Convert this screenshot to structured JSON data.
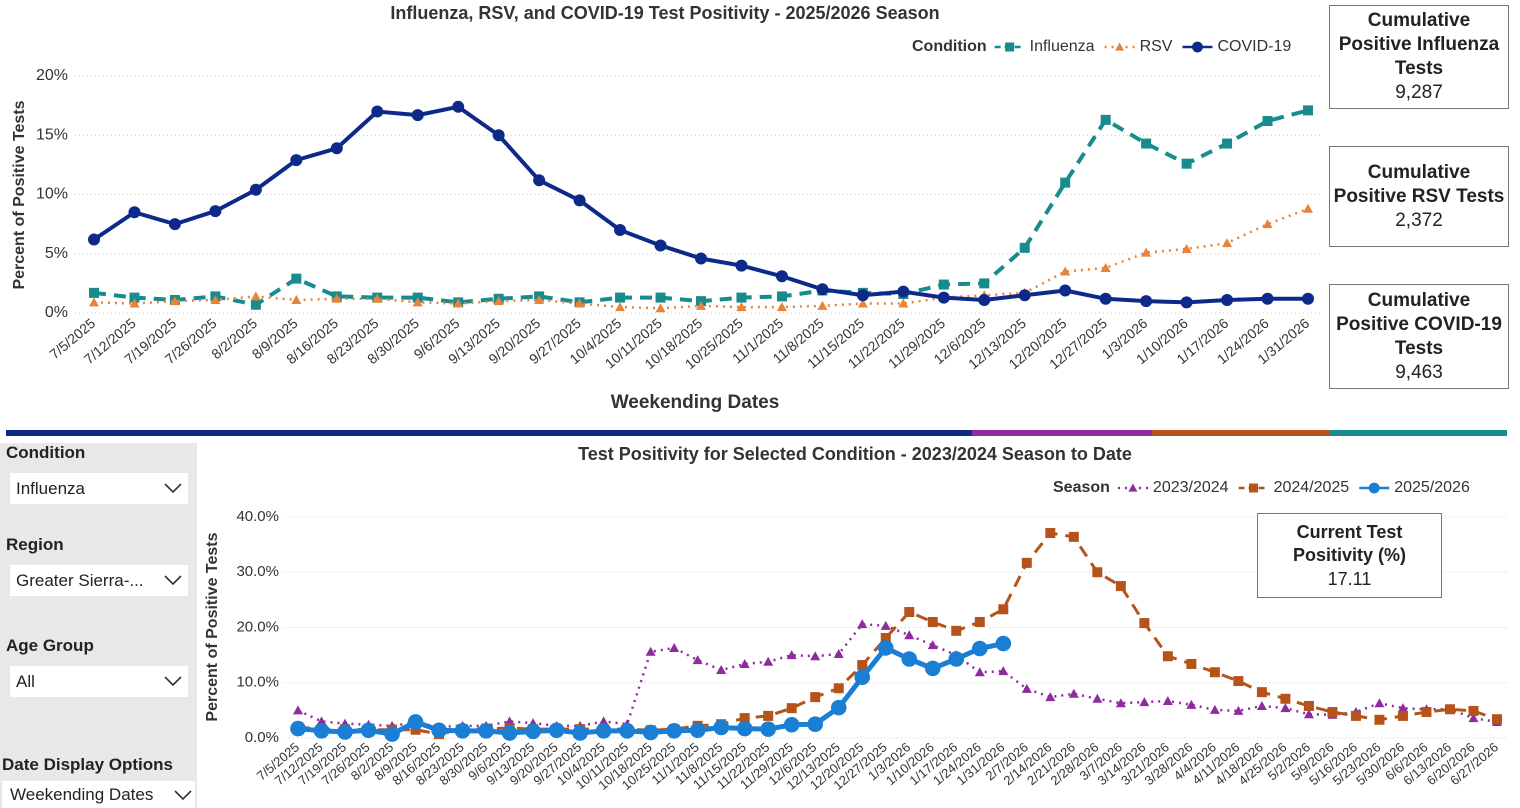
{
  "chart_data": [
    {
      "type": "line",
      "title": "Influenza, RSV, and COVID-19 Test Positivity - 2025/2026 Season",
      "x_label": "Weekending Dates",
      "y_label": "Percent of Positive Tests",
      "legend_title": "Condition",
      "grid": true,
      "categories": [
        "7/5/2025",
        "7/12/2025",
        "7/19/2025",
        "7/26/2025",
        "8/2/2025",
        "8/9/2025",
        "8/16/2025",
        "8/23/2025",
        "8/30/2025",
        "9/6/2025",
        "9/13/2025",
        "9/20/2025",
        "9/27/2025",
        "10/4/2025",
        "10/11/2025",
        "10/18/2025",
        "10/25/2025",
        "11/1/2025",
        "11/8/2025",
        "11/15/2025",
        "11/22/2025",
        "11/29/2025",
        "12/6/2025",
        "12/13/2025",
        "12/20/2025",
        "12/27/2025",
        "1/3/2026",
        "1/10/2026",
        "1/17/2026",
        "1/24/2026",
        "1/31/2026"
      ],
      "ylim": [
        0,
        20
      ],
      "yticks": [
        {
          "value": 0,
          "label": "0%"
        },
        {
          "value": 5,
          "label": "5%"
        },
        {
          "value": 10,
          "label": "10%"
        },
        {
          "value": 15,
          "label": "15%"
        },
        {
          "value": 20,
          "label": "20%"
        }
      ],
      "series": [
        {
          "name": "Influenza",
          "color": "#178b8d",
          "dash": "dash",
          "marker": "square",
          "values": [
            1.7,
            1.3,
            1.1,
            1.4,
            0.7,
            2.9,
            1.4,
            1.3,
            1.3,
            0.9,
            1.2,
            1.4,
            0.9,
            1.3,
            1.3,
            1.0,
            1.3,
            1.4,
            1.9,
            1.7,
            1.6,
            2.4,
            2.5,
            5.5,
            11.0,
            16.3,
            14.3,
            12.6,
            14.3,
            16.2,
            17.1
          ]
        },
        {
          "name": "RSV",
          "color": "#e8833a",
          "dash": "dot",
          "marker": "triangle",
          "values": [
            0.9,
            0.8,
            1.0,
            1.1,
            1.4,
            1.1,
            1.2,
            1.2,
            0.9,
            0.8,
            1.0,
            1.1,
            0.8,
            0.5,
            0.4,
            0.6,
            0.5,
            0.5,
            0.6,
            0.8,
            0.8,
            1.3,
            1.5,
            1.7,
            3.5,
            3.8,
            5.1,
            5.4,
            5.9,
            7.5,
            8.8
          ]
        },
        {
          "name": "COVID-19",
          "color": "#0d2a8a",
          "dash": "solid",
          "marker": "circle",
          "values": [
            6.2,
            8.5,
            7.5,
            8.6,
            10.4,
            12.9,
            13.9,
            17.0,
            16.7,
            17.4,
            15.0,
            11.2,
            9.5,
            7.0,
            5.7,
            4.6,
            4.0,
            3.1,
            2.0,
            1.5,
            1.8,
            1.3,
            1.1,
            1.5,
            1.9,
            1.2,
            1.0,
            0.9,
            1.1,
            1.2,
            1.2
          ]
        }
      ]
    },
    {
      "type": "line",
      "title": "Test Positivity for Selected Condition - 2023/2024 Season to Date",
      "y_label": "Percent of Positive Tests",
      "legend_title": "Season",
      "grid": true,
      "categories": [
        "7/5/2025",
        "7/12/2025",
        "7/19/2025",
        "7/26/2025",
        "8/2/2025",
        "8/9/2025",
        "8/16/2025",
        "8/23/2025",
        "8/30/2025",
        "9/6/2025",
        "9/13/2025",
        "9/20/2025",
        "9/27/2025",
        "10/4/2025",
        "10/11/2025",
        "10/18/2025",
        "10/25/2025",
        "11/1/2025",
        "11/8/2025",
        "11/15/2025",
        "11/22/2025",
        "11/29/2025",
        "12/6/2025",
        "12/13/2025",
        "12/20/2025",
        "12/27/2025",
        "1/3/2026",
        "1/10/2026",
        "1/17/2026",
        "1/24/2026",
        "1/31/2026",
        "2/7/2026",
        "2/14/2026",
        "2/21/2026",
        "2/28/2026",
        "3/7/2026",
        "3/14/2026",
        "3/21/2026",
        "3/28/2026",
        "4/4/2026",
        "4/11/2026",
        "4/18/2026",
        "4/25/2026",
        "5/2/2026",
        "5/9/2026",
        "5/16/2026",
        "5/23/2026",
        "5/30/2026",
        "6/6/2026",
        "6/13/2026",
        "6/20/2026",
        "6/27/2026"
      ],
      "ylim": [
        0,
        40
      ],
      "yticks": [
        {
          "value": 0,
          "label": "0.0%"
        },
        {
          "value": 10,
          "label": "10.0%"
        },
        {
          "value": 20,
          "label": "20.0%"
        },
        {
          "value": 30,
          "label": "30.0%"
        },
        {
          "value": 40,
          "label": "40.0%"
        }
      ],
      "series": [
        {
          "name": "2023/2024",
          "color": "#8e2c9e",
          "dash": "dot",
          "marker": "triangle",
          "values": [
            5.0,
            3.0,
            2.6,
            2.4,
            2.2,
            2.8,
            2.0,
            2.2,
            2.2,
            3.0,
            2.7,
            2.2,
            2.2,
            3.0,
            2.5,
            15.6,
            16.3,
            14.1,
            12.3,
            13.4,
            13.8,
            15.0,
            14.8,
            15.2,
            20.6,
            20.3,
            18.6,
            16.8,
            15.0,
            11.9,
            12.1,
            8.9,
            7.4,
            8.0,
            7.1,
            6.3,
            6.5,
            6.7,
            6.0,
            5.1,
            4.9,
            5.8,
            5.4,
            4.3,
            4.2,
            4.7,
            6.3,
            5.4,
            5.2,
            5.2,
            3.6,
            2.9
          ]
        },
        {
          "name": "2024/2025",
          "color": "#b5531b",
          "dash": "dash",
          "marker": "square",
          "values": [
            2.0,
            1.6,
            1.6,
            1.5,
            1.5,
            1.5,
            0.7,
            1.6,
            1.7,
            1.8,
            1.6,
            1.6,
            1.6,
            1.6,
            1.6,
            1.4,
            1.6,
            2.2,
            2.5,
            3.6,
            4.0,
            5.4,
            7.4,
            9.0,
            13.2,
            18.1,
            22.8,
            21.0,
            19.4,
            21.0,
            23.3,
            31.7,
            37.1,
            36.4,
            30.0,
            27.5,
            20.8,
            14.8,
            13.4,
            11.9,
            10.3,
            8.3,
            7.1,
            5.8,
            4.7,
            4.0,
            3.3,
            4.0,
            4.7,
            5.2,
            4.9,
            3.4
          ]
        },
        {
          "name": "2025/2026",
          "color": "#1a7fd4",
          "dash": "solid",
          "marker": "circle",
          "values": [
            1.7,
            1.3,
            1.1,
            1.4,
            0.7,
            2.9,
            1.4,
            1.3,
            1.3,
            0.9,
            1.2,
            1.4,
            0.9,
            1.3,
            1.3,
            1.0,
            1.3,
            1.4,
            1.9,
            1.7,
            1.6,
            2.4,
            2.5,
            5.5,
            11.0,
            16.3,
            14.3,
            12.6,
            14.3,
            16.2,
            17.1,
            null,
            null,
            null,
            null,
            null,
            null,
            null,
            null,
            null,
            null,
            null,
            null,
            null,
            null,
            null,
            null,
            null,
            null,
            null,
            null,
            null
          ]
        }
      ]
    }
  ],
  "cards": [
    {
      "title": "Cumulative Positive Influenza Tests",
      "value": "9,287"
    },
    {
      "title": "Cumulative Positive RSV Tests",
      "value": "2,372"
    },
    {
      "title": "Cumulative Positive COVID-19 Tests",
      "value": "9,463"
    }
  ],
  "current_card": {
    "title": "Current Test Positivity (%)",
    "value": "17.11"
  },
  "filters": [
    {
      "label": "Condition",
      "value": "Influenza"
    },
    {
      "label": "Region",
      "value": "Greater Sierra-..."
    },
    {
      "label": "Age Group",
      "value": "All"
    },
    {
      "label": "Date Display Options",
      "value": "Weekending Dates"
    }
  ]
}
